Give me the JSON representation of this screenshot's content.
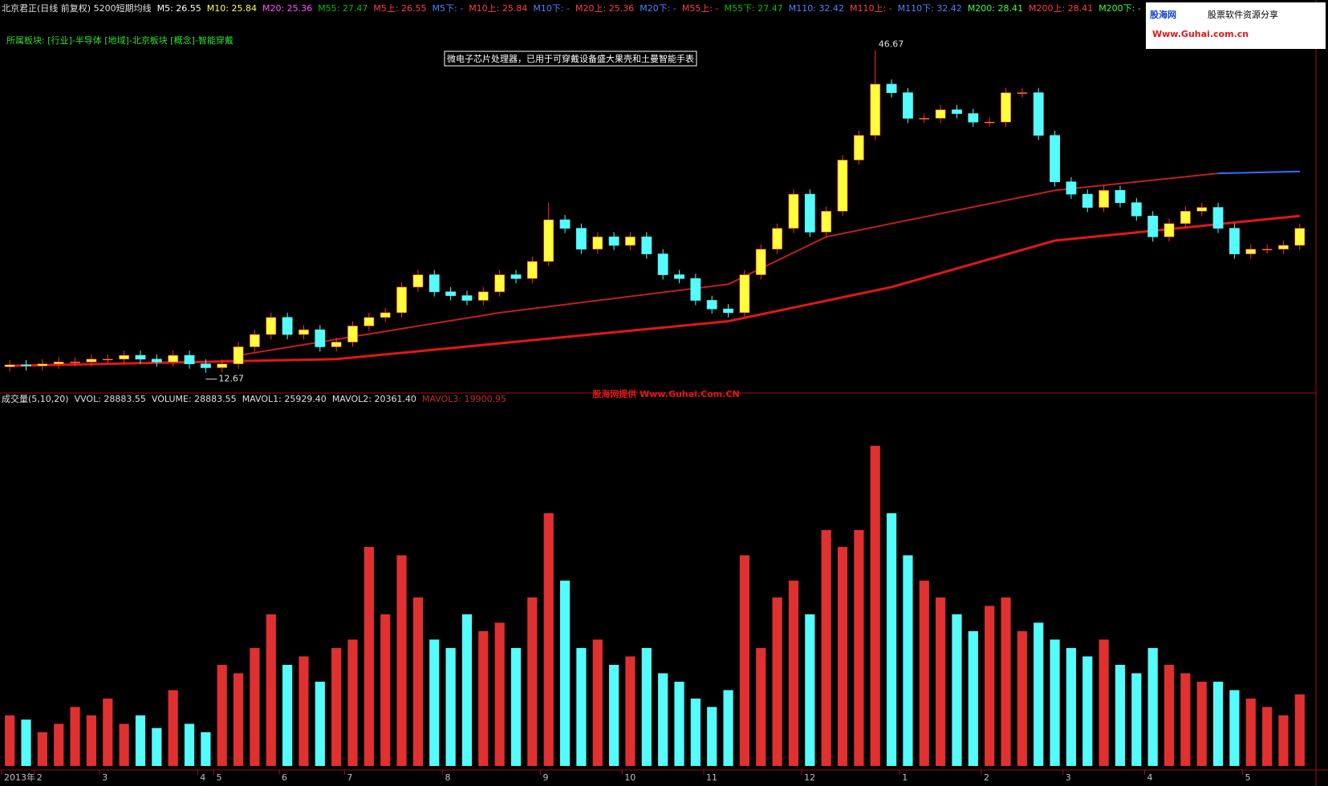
{
  "chart_data": [
    {
      "type": "candlestick",
      "header_items": [
        {
          "label": "北京君正(日线 前复权) 5200短期均线",
          "color": "#e0e0e0"
        },
        {
          "label": "M5: 26.55",
          "color": "#ffffff"
        },
        {
          "label": "M10: 25.84",
          "color": "#ffff54"
        },
        {
          "label": "M20: 25.36",
          "color": "#ff54ff"
        },
        {
          "label": "M55: 27.47",
          "color": "#00c000"
        },
        {
          "label": "M5上: 26.55",
          "color": "#ff4040"
        },
        {
          "label": "M5下: -",
          "color": "#5080ff"
        },
        {
          "label": "M10上: 25.84",
          "color": "#ff4040"
        },
        {
          "label": "M10下: -",
          "color": "#5080ff"
        },
        {
          "label": "M20上: 25.36",
          "color": "#ff4040"
        },
        {
          "label": "M20下: -",
          "color": "#5080ff"
        },
        {
          "label": "M55上: -",
          "color": "#ff4040"
        },
        {
          "label": "M55下: 27.47",
          "color": "#00c000"
        },
        {
          "label": "M110: 32.42",
          "color": "#5080ff"
        },
        {
          "label": "M110上: -",
          "color": "#ff4040"
        },
        {
          "label": "M110下: 32.42",
          "color": "#5080ff"
        },
        {
          "label": "M200: 28.41",
          "color": "#40ff40"
        },
        {
          "label": "M200上: 28.41",
          "color": "#ff4040"
        },
        {
          "label": "M200下: -",
          "color": "#40ff40"
        }
      ],
      "sector": "所属板块: [行业]-半导体 [地域]-北京板块 [概念]-智能穿戴",
      "annotation": "微电子芯片处理器，已用于可穿戴设备盛大果壳和土曼智能手表",
      "up_color": "#ffff3c",
      "down_color": "#54fcfc",
      "wick_color": "#ff3030",
      "ylim": [
        10.7,
        50.2
      ],
      "open": [
        13.3,
        13.5,
        13.4,
        13.6,
        13.8,
        13.8,
        14.1,
        14.1,
        14.5,
        14.1,
        13.8,
        14.5,
        13.6,
        13.2,
        13.6,
        15.4,
        16.7,
        18.5,
        16.7,
        17.2,
        15.4,
        15.9,
        17.6,
        18.5,
        19.0,
        21.7,
        23.0,
        21.2,
        20.8,
        20.3,
        21.2,
        23.0,
        22.6,
        24.4,
        28.8,
        27.9,
        25.7,
        27.0,
        26.1,
        27.0,
        25.2,
        23.0,
        22.6,
        20.3,
        19.4,
        19.0,
        23.0,
        25.7,
        27.9,
        31.5,
        27.5,
        29.7,
        35.1,
        37.7,
        43.1,
        42.2,
        39.5,
        39.5,
        40.4,
        40.0,
        39.1,
        39.1,
        42.2,
        42.2,
        37.7,
        32.8,
        31.5,
        30.1,
        31.9,
        30.6,
        29.2,
        27.0,
        28.4,
        29.7,
        30.1,
        27.9,
        25.2,
        25.7,
        25.7,
        26.1
      ],
      "high": [
        14.0,
        14.0,
        14.1,
        14.3,
        14.3,
        14.6,
        14.6,
        15.0,
        15.0,
        14.6,
        15.0,
        15.0,
        14.1,
        14.1,
        15.9,
        17.2,
        19.0,
        19.0,
        17.7,
        17.7,
        16.4,
        18.1,
        19.0,
        19.5,
        22.2,
        23.5,
        23.5,
        21.7,
        21.3,
        21.7,
        23.5,
        23.5,
        24.9,
        30.6,
        29.3,
        28.4,
        27.5,
        27.5,
        27.5,
        27.5,
        25.7,
        23.5,
        23.1,
        20.8,
        19.9,
        23.5,
        26.2,
        28.4,
        32.0,
        32.0,
        30.2,
        35.6,
        38.2,
        46.67,
        43.6,
        42.7,
        40.0,
        40.9,
        40.9,
        40.5,
        39.6,
        42.7,
        42.7,
        42.7,
        38.2,
        33.3,
        32.0,
        32.4,
        32.4,
        31.1,
        29.7,
        28.9,
        30.2,
        30.6,
        30.6,
        28.4,
        26.2,
        26.2,
        26.6,
        28.4
      ],
      "low": [
        12.8,
        12.9,
        12.9,
        13.1,
        13.3,
        13.3,
        13.6,
        13.6,
        13.6,
        13.3,
        13.3,
        13.1,
        12.67,
        12.7,
        13.1,
        14.9,
        16.2,
        16.2,
        16.2,
        14.9,
        14.9,
        15.4,
        17.1,
        18.0,
        18.5,
        21.2,
        20.7,
        20.3,
        19.8,
        19.8,
        20.7,
        22.1,
        22.1,
        23.9,
        27.4,
        25.2,
        25.2,
        25.6,
        25.6,
        24.7,
        22.5,
        22.1,
        19.8,
        18.9,
        18.5,
        18.5,
        22.5,
        25.2,
        27.4,
        27.0,
        27.0,
        29.2,
        34.6,
        37.2,
        41.7,
        39.0,
        39.0,
        39.0,
        39.5,
        38.6,
        38.6,
        38.6,
        41.7,
        37.2,
        32.3,
        31.0,
        29.6,
        29.6,
        30.1,
        28.7,
        26.5,
        26.5,
        27.9,
        29.2,
        27.4,
        24.7,
        24.7,
        25.2,
        25.2,
        25.6
      ],
      "close": [
        13.5,
        13.4,
        13.6,
        13.8,
        13.8,
        14.1,
        14.1,
        14.5,
        14.1,
        13.8,
        14.5,
        13.6,
        13.2,
        13.6,
        15.4,
        16.7,
        18.5,
        16.7,
        17.2,
        15.4,
        15.9,
        17.6,
        18.5,
        19.0,
        21.7,
        23.0,
        21.2,
        20.8,
        20.3,
        21.2,
        23.0,
        22.6,
        24.4,
        28.8,
        27.9,
        25.7,
        27.0,
        26.1,
        27.0,
        25.2,
        23.0,
        22.6,
        20.3,
        19.4,
        19.0,
        23.0,
        25.7,
        27.9,
        31.5,
        27.5,
        29.7,
        35.1,
        37.7,
        43.1,
        42.2,
        39.5,
        39.5,
        40.4,
        40.0,
        39.1,
        39.1,
        42.2,
        42.2,
        37.7,
        32.8,
        31.5,
        30.1,
        31.9,
        30.6,
        29.2,
        27.0,
        28.4,
        29.7,
        30.1,
        27.9,
        25.2,
        25.7,
        25.7,
        26.1,
        27.9
      ],
      "ma_lines": [
        {
          "color": "#e01818",
          "width": 3,
          "x": [
            0,
            20,
            44,
            54,
            64,
            79
          ],
          "values": [
            13.4,
            14.1,
            18.1,
            21.7,
            26.6,
            29.2
          ]
        },
        {
          "color": "#c02020",
          "width": 2,
          "x": [
            14,
            30,
            44,
            50,
            64,
            74
          ],
          "values": [
            14.5,
            19.0,
            22.0,
            27.0,
            31.9,
            33.7
          ]
        },
        {
          "color": "#3070ff",
          "width": 2,
          "x": [
            74,
            79
          ],
          "values": [
            33.7,
            33.9
          ]
        }
      ],
      "extreme_labels": [
        {
          "value": 46.67,
          "label": "46.67"
        },
        {
          "value": 12.67,
          "label": "12.67"
        }
      ]
    },
    {
      "type": "bar",
      "header_items": [
        {
          "label": "成交量(5,10,20)",
          "color": "#e0e0e0"
        },
        {
          "label": "VVOL: 28883.55",
          "color": "#e0e0e0"
        },
        {
          "label": "VOLUME: 28883.55",
          "color": "#e0e0e0"
        },
        {
          "label": "MAVOL1: 25929.40",
          "color": "#e0e0e0"
        },
        {
          "label": "MAVOL2: 20361.40",
          "color": "#e0e0e0"
        },
        {
          "label": "MAVOL3: 19900.95",
          "color": "#c03030"
        }
      ],
      "up_color": "#e03030",
      "down_color": "#54fcfc",
      "ylim": [
        0,
        145000
      ],
      "categories": [
        "2013年",
        null,
        "2",
        null,
        null,
        null,
        "3",
        null,
        null,
        null,
        null,
        null,
        "4",
        "5",
        null,
        null,
        null,
        "6",
        null,
        null,
        null,
        "7",
        null,
        null,
        null,
        null,
        null,
        "8",
        null,
        null,
        null,
        null,
        null,
        "9",
        null,
        null,
        null,
        null,
        "10",
        null,
        null,
        null,
        null,
        "11",
        null,
        null,
        null,
        null,
        null,
        "12",
        null,
        null,
        null,
        null,
        null,
        "1",
        null,
        null,
        null,
        null,
        "2",
        null,
        null,
        null,
        null,
        "3",
        null,
        null,
        null,
        null,
        "4",
        null,
        null,
        null,
        null,
        null,
        "5",
        null,
        null,
        null
      ],
      "values": [
        20400,
        18700,
        13600,
        17000,
        23800,
        20400,
        27200,
        17000,
        20400,
        15300,
        30600,
        17000,
        13600,
        40800,
        37400,
        47600,
        61200,
        40800,
        44200,
        34000,
        47600,
        51000,
        88400,
        61200,
        85000,
        68000,
        51000,
        47600,
        61200,
        54400,
        57800,
        47600,
        68000,
        102000,
        74800,
        47600,
        51000,
        40800,
        44200,
        47600,
        37400,
        34000,
        27200,
        23800,
        30600,
        85000,
        47600,
        68000,
        74800,
        61200,
        95200,
        88400,
        95200,
        129200,
        102000,
        85000,
        74800,
        68000,
        61200,
        54400,
        64600,
        68000,
        54400,
        57800,
        51000,
        47600,
        44200,
        51000,
        40800,
        37400,
        47600,
        40800,
        37400,
        34000,
        34000,
        30600,
        27200,
        23800,
        20400,
        28883.55
      ]
    }
  ],
  "watermark": "股海网提供 Www.Guhai.Com.CN",
  "logo": {
    "name": "股海网",
    "slogan": "股票软件资源分享",
    "url": "Www.Guhai.com.cn"
  }
}
